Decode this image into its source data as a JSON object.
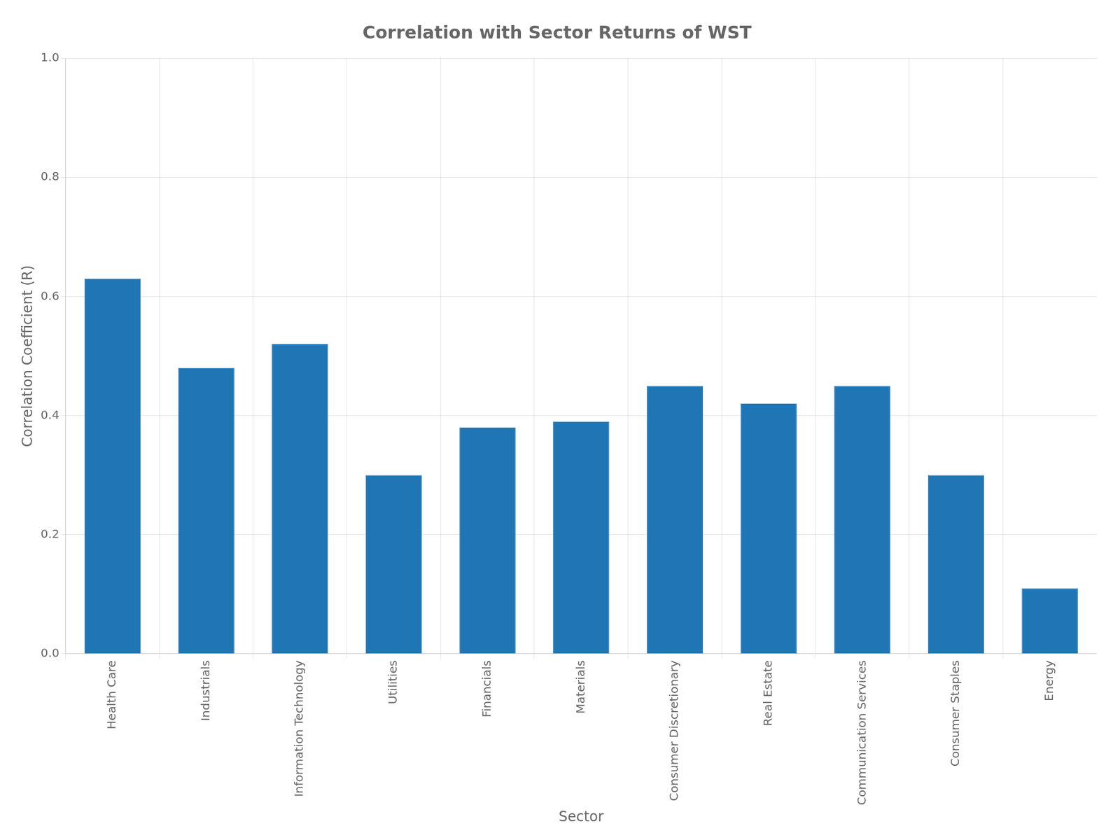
{
  "chart_data": {
    "type": "bar",
    "title": "Correlation with Sector Returns of WST",
    "xlabel": "Sector",
    "ylabel": "Correlation Coefficient (R)",
    "categories": [
      "Health Care",
      "Industrials",
      "Information Technology",
      "Utilities",
      "Financials",
      "Materials",
      "Consumer Discretionary",
      "Real Estate",
      "Communication Services",
      "Consumer Staples",
      "Energy"
    ],
    "values": [
      0.63,
      0.48,
      0.52,
      0.3,
      0.38,
      0.39,
      0.45,
      0.42,
      0.45,
      0.3,
      0.11
    ],
    "color": "#2076b4",
    "ylim": [
      0.0,
      1.0
    ],
    "yticks": [
      {
        "value": 0.0,
        "label": "0.0"
      },
      0.2,
      0.4,
      0.6,
      0.8,
      {
        "value": 1.0,
        "label": "1.0"
      }
    ],
    "grid": true
  }
}
